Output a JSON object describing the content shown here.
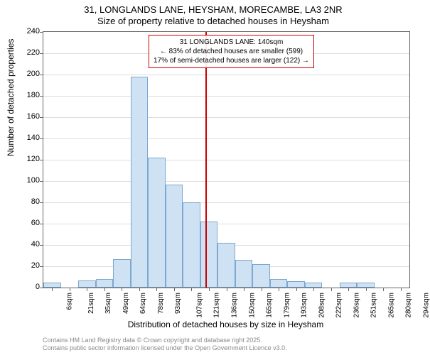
{
  "chart": {
    "type": "histogram",
    "title_line1": "31, LONGLANDS LANE, HEYSHAM, MORECAMBE, LA3 2NR",
    "title_line2": "Size of property relative to detached houses in Heysham",
    "x_axis_label": "Distribution of detached houses by size in Heysham",
    "y_axis_label": "Number of detached properties",
    "ylim": [
      0,
      240
    ],
    "ytick_step": 20,
    "y_ticks": [
      0,
      20,
      40,
      60,
      80,
      100,
      120,
      140,
      160,
      180,
      200,
      220,
      240
    ],
    "x_tick_labels": [
      "6sqm",
      "21sqm",
      "35sqm",
      "49sqm",
      "64sqm",
      "78sqm",
      "93sqm",
      "107sqm",
      "121sqm",
      "136sqm",
      "150sqm",
      "165sqm",
      "179sqm",
      "193sqm",
      "208sqm",
      "222sqm",
      "236sqm",
      "251sqm",
      "265sqm",
      "280sqm",
      "294sqm"
    ],
    "bars": [
      {
        "x": 0,
        "h": 5
      },
      {
        "x": 1,
        "h": 0
      },
      {
        "x": 2,
        "h": 7
      },
      {
        "x": 3,
        "h": 8
      },
      {
        "x": 4,
        "h": 27
      },
      {
        "x": 5,
        "h": 198
      },
      {
        "x": 6,
        "h": 122
      },
      {
        "x": 7,
        "h": 97
      },
      {
        "x": 8,
        "h": 80
      },
      {
        "x": 9,
        "h": 62
      },
      {
        "x": 10,
        "h": 42
      },
      {
        "x": 11,
        "h": 26
      },
      {
        "x": 12,
        "h": 22
      },
      {
        "x": 13,
        "h": 8
      },
      {
        "x": 14,
        "h": 6
      },
      {
        "x": 15,
        "h": 5
      },
      {
        "x": 16,
        "h": 0
      },
      {
        "x": 17,
        "h": 5
      },
      {
        "x": 18,
        "h": 5
      },
      {
        "x": 19,
        "h": 0
      },
      {
        "x": 20,
        "h": 0
      }
    ],
    "bar_fill": "#cfe2f3",
    "bar_border": "#7ba7d1",
    "grid_color": "#dddddd",
    "background_color": "#ffffff",
    "reference_line": {
      "x_index": 9.3,
      "color": "#cc0000"
    },
    "annotation": {
      "line1": "31 LONGLANDS LANE: 140sqm",
      "line2": "← 83% of detached houses are smaller (599)",
      "line3": "17% of semi-detached houses are larger (122) →",
      "border_color": "#cc0000"
    },
    "footer_line1": "Contains HM Land Registry data © Crown copyright and database right 2025.",
    "footer_line2": "Contains public sector information licensed under the Open Government Licence v3.0."
  }
}
